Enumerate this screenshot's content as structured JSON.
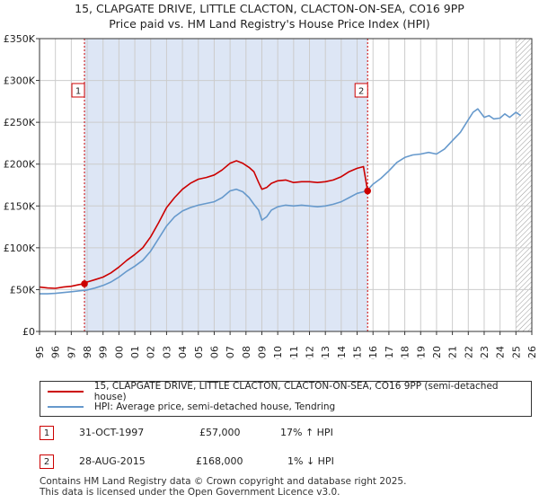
{
  "title": "15, CLAPGATE DRIVE, LITTLE CLACTON, CLACTON-ON-SEA, CO16 9PP",
  "subtitle": "Price paid vs. HM Land Registry's House Price Index (HPI)",
  "colors": {
    "red": "#cc0000",
    "blue": "#6699cc",
    "shade": "#dde6f5",
    "grid": "#cccccc"
  },
  "legend": {
    "property_label": "15, CLAPGATE DRIVE, LITTLE CLACTON, CLACTON-ON-SEA, CO16 9PP (semi-detached house)",
    "hpi_label": "HPI: Average price, semi-detached house, Tendring"
  },
  "transactions": [
    {
      "num": "1",
      "date": "31-OCT-1997",
      "price": "£57,000",
      "hpi": "17% ↑ HPI"
    },
    {
      "num": "2",
      "date": "28-AUG-2015",
      "price": "£168,000",
      "hpi": "1% ↓ HPI"
    }
  ],
  "footer": {
    "line1": "Contains HM Land Registry data © Crown copyright and database right 2025.",
    "line2": "This data is licensed under the Open Government Licence v3.0."
  },
  "chart_data": {
    "type": "line",
    "xlim": [
      1995,
      2026
    ],
    "ylim": [
      0,
      350000
    ],
    "x_ticks": [
      "1995",
      "1996",
      "1997",
      "1998",
      "1999",
      "2000",
      "2001",
      "2002",
      "2003",
      "2004",
      "2005",
      "2006",
      "2007",
      "2008",
      "2009",
      "2010",
      "2011",
      "2012",
      "2013",
      "2014",
      "2015",
      "2016",
      "2017",
      "2018",
      "2019",
      "2020",
      "2021",
      "2022",
      "2023",
      "2024",
      "2025",
      "2026"
    ],
    "y_ticks": [
      {
        "value": 0,
        "label": "£0"
      },
      {
        "value": 50000,
        "label": "£50K"
      },
      {
        "value": 100000,
        "label": "£100K"
      },
      {
        "value": 150000,
        "label": "£150K"
      },
      {
        "value": 200000,
        "label": "£200K"
      },
      {
        "value": 250000,
        "label": "£250K"
      },
      {
        "value": 300000,
        "label": "£300K"
      },
      {
        "value": 350000,
        "label": "£350K"
      }
    ],
    "shaded_range": [
      1997.83,
      2015.66
    ],
    "hatched_from": 2025.0,
    "sales": [
      {
        "label": "1",
        "x": 1997.83,
        "y": 57000
      },
      {
        "label": "2",
        "x": 2015.66,
        "y": 168000
      }
    ],
    "series": [
      {
        "name": "15, CLAPGATE DRIVE, LITTLE CLACTON, CLACTON-ON-SEA, CO16 9PP (semi-detached house)",
        "color": "#cc0000",
        "x": [
          1995.0,
          1995.5,
          1996.0,
          1996.5,
          1997.0,
          1997.5,
          1997.83,
          1998.0,
          1998.5,
          1999.0,
          1999.5,
          2000.0,
          2000.5,
          2001.0,
          2001.5,
          2002.0,
          2002.5,
          2003.0,
          2003.5,
          2004.0,
          2004.5,
          2005.0,
          2005.5,
          2006.0,
          2006.5,
          2007.0,
          2007.4,
          2007.8,
          2008.2,
          2008.5,
          2008.8,
          2009.0,
          2009.3,
          2009.6,
          2010.0,
          2010.5,
          2011.0,
          2011.5,
          2012.0,
          2012.5,
          2013.0,
          2013.5,
          2014.0,
          2014.5,
          2015.0,
          2015.4,
          2015.66
        ],
        "y": [
          53000,
          52000,
          51500,
          53000,
          54000,
          56000,
          57000,
          59000,
          62000,
          65000,
          70000,
          77000,
          85000,
          92000,
          100000,
          113000,
          130000,
          148000,
          160000,
          170000,
          177000,
          182000,
          184000,
          187000,
          193000,
          201000,
          204000,
          201000,
          196000,
          191000,
          178000,
          170000,
          172000,
          177000,
          180000,
          181000,
          178000,
          179000,
          179000,
          178000,
          179000,
          181000,
          185000,
          191000,
          195000,
          197000,
          168000
        ]
      },
      {
        "name": "HPI: Average price, semi-detached house, Tendring",
        "color": "#6699cc",
        "x": [
          1995.0,
          1995.5,
          1996.0,
          1996.5,
          1997.0,
          1997.5,
          1998.0,
          1998.5,
          1999.0,
          1999.5,
          2000.0,
          2000.5,
          2001.0,
          2001.5,
          2002.0,
          2002.5,
          2003.0,
          2003.5,
          2004.0,
          2004.5,
          2005.0,
          2005.5,
          2006.0,
          2006.5,
          2007.0,
          2007.4,
          2007.8,
          2008.2,
          2008.5,
          2008.8,
          2009.0,
          2009.3,
          2009.6,
          2010.0,
          2010.5,
          2011.0,
          2011.5,
          2012.0,
          2012.5,
          2013.0,
          2013.5,
          2014.0,
          2014.5,
          2015.0,
          2015.4,
          2015.66,
          2016.0,
          2016.5,
          2017.0,
          2017.5,
          2018.0,
          2018.5,
          2019.0,
          2019.5,
          2020.0,
          2020.5,
          2021.0,
          2021.5,
          2022.0,
          2022.3,
          2022.6,
          2023.0,
          2023.3,
          2023.6,
          2024.0,
          2024.3,
          2024.6,
          2025.0,
          2025.3
        ],
        "y": [
          45000,
          45000,
          45500,
          46500,
          47500,
          48500,
          49500,
          52000,
          55000,
          59000,
          65000,
          72000,
          78000,
          85000,
          96000,
          111000,
          126000,
          137000,
          144000,
          148000,
          151000,
          153000,
          155000,
          160000,
          168000,
          170000,
          167000,
          160000,
          152000,
          145000,
          133000,
          137000,
          145000,
          149000,
          151000,
          150000,
          151000,
          150000,
          149000,
          150000,
          152000,
          155000,
          160000,
          165000,
          167000,
          169000,
          176000,
          183000,
          192000,
          202000,
          208000,
          211000,
          212000,
          214000,
          212000,
          218000,
          228000,
          238000,
          253000,
          262000,
          266000,
          256000,
          258000,
          254000,
          255000,
          260000,
          256000,
          262000,
          258000
        ]
      }
    ]
  }
}
